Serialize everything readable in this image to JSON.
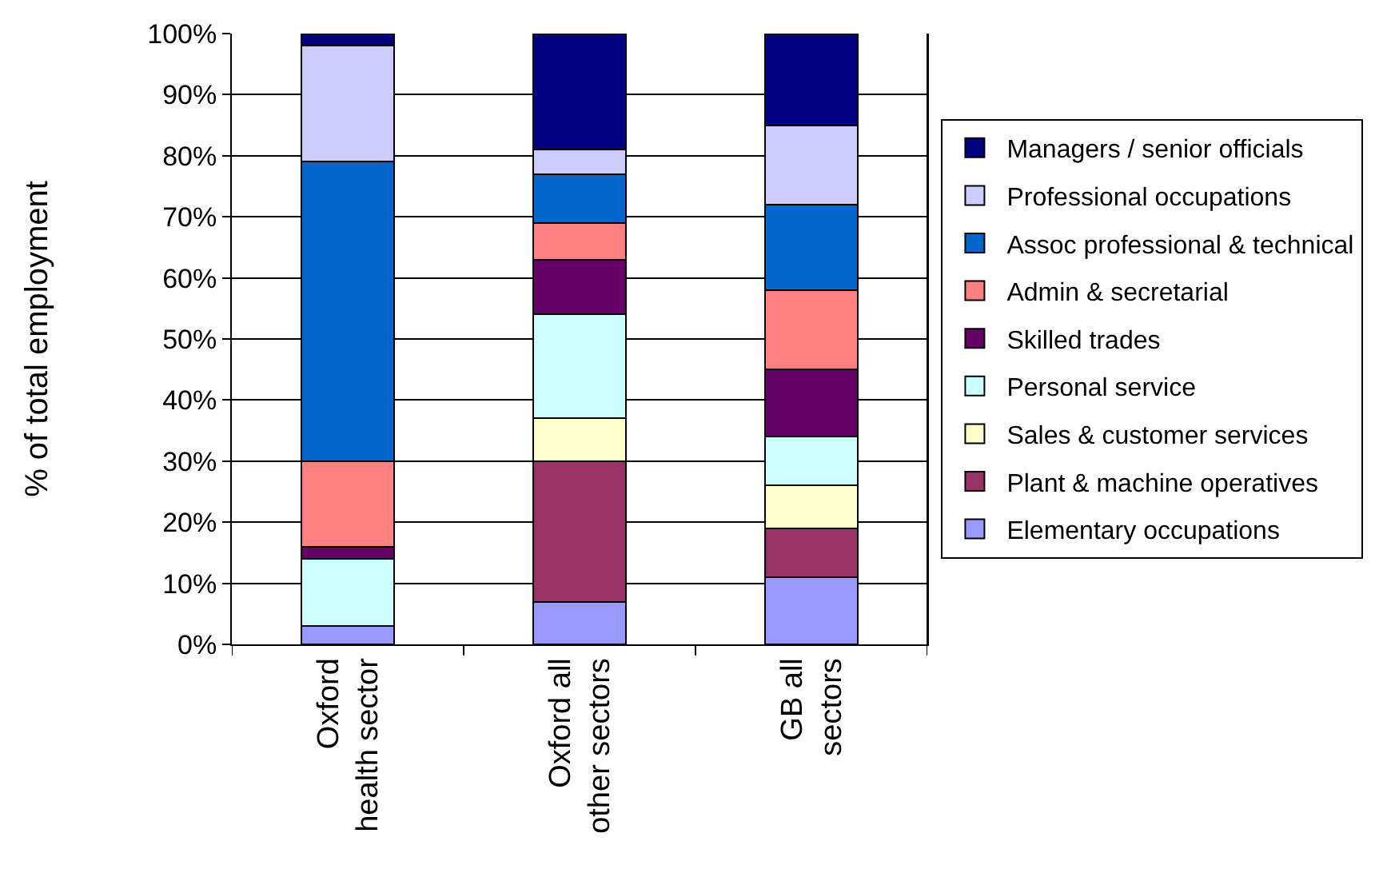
{
  "chart_data": {
    "type": "bar",
    "stacked": true,
    "ylabel": "% of total employment",
    "categories": [
      "Oxford\nhealth sector",
      "Oxford all\nother sectors",
      "GB all\nsectors"
    ],
    "series": [
      {
        "name": "Elementary occupations",
        "color": "#9999ff",
        "values": [
          3,
          7,
          11
        ]
      },
      {
        "name": "Plant & machine operatives",
        "color": "#993366",
        "values": [
          0,
          23,
          8
        ]
      },
      {
        "name": "Sales & customer services",
        "color": "#ffffcc",
        "values": [
          0,
          7,
          7
        ]
      },
      {
        "name": "Personal service",
        "color": "#ccffff",
        "values": [
          11,
          17,
          8
        ]
      },
      {
        "name": "Skilled trades",
        "color": "#660066",
        "values": [
          2,
          9,
          11
        ]
      },
      {
        "name": "Admin & secretarial",
        "color": "#ff8080",
        "values": [
          14,
          6,
          13
        ]
      },
      {
        "name": "Assoc professional & technical",
        "color": "#0066cc",
        "values": [
          49,
          8,
          14
        ]
      },
      {
        "name": "Professional occupations",
        "color": "#ccccff",
        "values": [
          19,
          4,
          13
        ]
      },
      {
        "name": "Managers / senior officials",
        "color": "#000080",
        "values": [
          2,
          19,
          15
        ]
      }
    ],
    "ylim": [
      0,
      100
    ],
    "yticks": [
      {
        "value": 0,
        "label": "0%"
      },
      {
        "value": 10,
        "label": "10%"
      },
      {
        "value": 20,
        "label": "20%"
      },
      {
        "value": 30,
        "label": "30%"
      },
      {
        "value": 40,
        "label": "40%"
      },
      {
        "value": 50,
        "label": "50%"
      },
      {
        "value": 60,
        "label": "60%"
      },
      {
        "value": 70,
        "label": "70%"
      },
      {
        "value": 80,
        "label": "80%"
      },
      {
        "value": 90,
        "label": "90%"
      },
      {
        "value": 100,
        "label": "100%"
      }
    ],
    "grid": "y",
    "legend": "right"
  }
}
